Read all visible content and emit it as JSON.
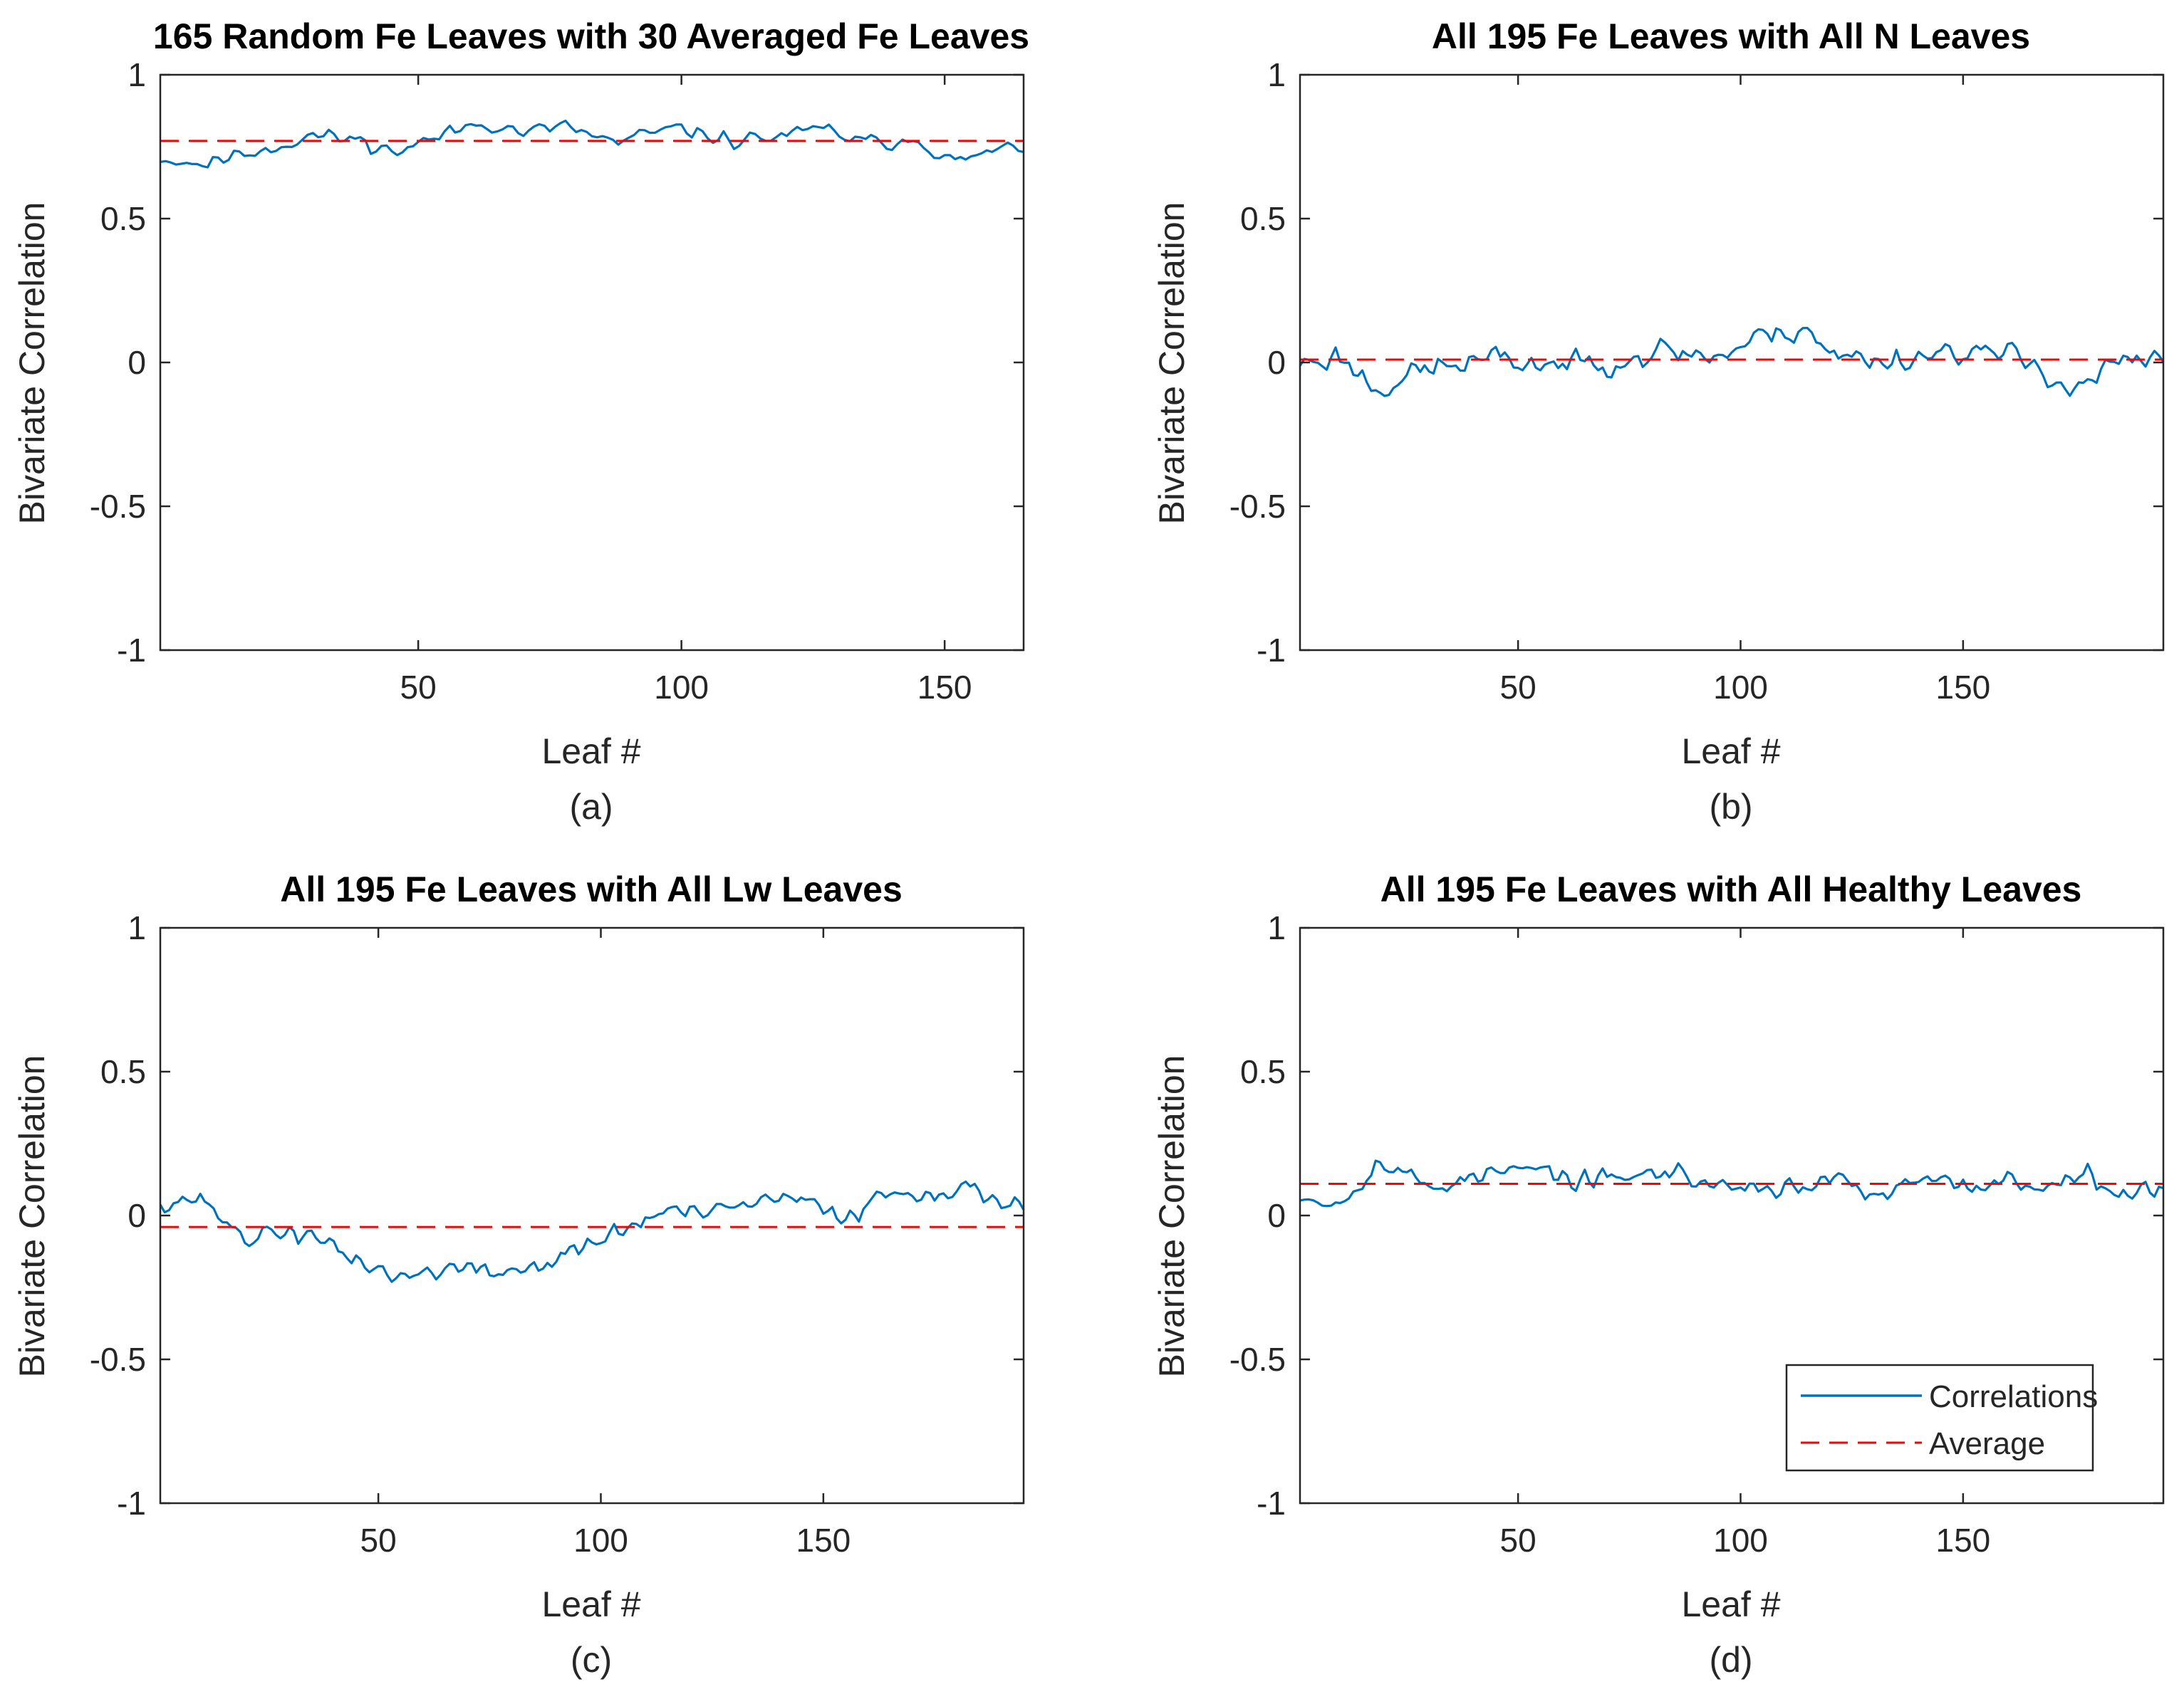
{
  "chart_data": [
    {
      "type": "line",
      "panel": "a",
      "caption": "(a)",
      "title": "165 Random Fe Leaves with 30 Averaged Fe Leaves",
      "xlabel": "Leaf #",
      "ylabel": "Bivariate Correlation",
      "xlim": [
        1,
        165
      ],
      "ylim": [
        -1,
        1
      ],
      "xticks": [
        50,
        100,
        150
      ],
      "yticks": [
        -1,
        -0.5,
        0,
        0.5,
        1
      ],
      "series": [
        {
          "name": "Correlations",
          "color": "#0072BD",
          "style": "solid",
          "n": 165,
          "base": 0.77,
          "amplitude": 0.035,
          "seed": 11,
          "anchors": [
            [
              1,
              0.71
            ],
            [
              5,
              0.7
            ],
            [
              10,
              0.69
            ],
            [
              15,
              0.72
            ],
            [
              25,
              0.76
            ],
            [
              30,
              0.79
            ],
            [
              40,
              0.77
            ],
            [
              45,
              0.73
            ],
            [
              55,
              0.79
            ],
            [
              62,
              0.84
            ],
            [
              70,
              0.8
            ],
            [
              78,
              0.82
            ],
            [
              88,
              0.76
            ],
            [
              95,
              0.8
            ],
            [
              100,
              0.81
            ],
            [
              110,
              0.77
            ],
            [
              120,
              0.79
            ],
            [
              128,
              0.81
            ],
            [
              135,
              0.76
            ],
            [
              145,
              0.78
            ],
            [
              152,
              0.69
            ],
            [
              158,
              0.73
            ],
            [
              165,
              0.75
            ]
          ]
        },
        {
          "name": "Average",
          "color": "#FF0000",
          "style": "dashed",
          "constant": 0.77
        }
      ]
    },
    {
      "type": "line",
      "panel": "b",
      "caption": "(b)",
      "title": "All 195 Fe Leaves with All N Leaves",
      "xlabel": "Leaf #",
      "ylabel": "Bivariate Correlation",
      "xlim": [
        1,
        195
      ],
      "ylim": [
        -1,
        1
      ],
      "xticks": [
        50,
        100,
        150
      ],
      "yticks": [
        -1,
        -0.5,
        0,
        0.5,
        1
      ],
      "series": [
        {
          "name": "Correlations",
          "color": "#0072BD",
          "style": "solid",
          "n": 195,
          "base": 0.0,
          "amplitude": 0.06,
          "seed": 23,
          "anchors": [
            [
              1,
              0.0
            ],
            [
              10,
              0.02
            ],
            [
              18,
              -0.09
            ],
            [
              30,
              -0.02
            ],
            [
              45,
              0.01
            ],
            [
              60,
              -0.01
            ],
            [
              75,
              0.02
            ],
            [
              85,
              0.04
            ],
            [
              95,
              0.02
            ],
            [
              105,
              0.09
            ],
            [
              115,
              0.13
            ],
            [
              120,
              0.02
            ],
            [
              135,
              0.01
            ],
            [
              150,
              0.05
            ],
            [
              165,
              0.0
            ],
            [
              175,
              -0.09
            ],
            [
              185,
              0.0
            ],
            [
              195,
              0.0
            ]
          ]
        },
        {
          "name": "Average",
          "color": "#FF0000",
          "style": "dashed",
          "constant": 0.01
        }
      ]
    },
    {
      "type": "line",
      "panel": "c",
      "caption": "(c)",
      "title": "All 195 Fe Leaves with All Lw Leaves",
      "xlabel": "Leaf #",
      "ylabel": "Bivariate Correlation",
      "xlim": [
        1,
        195
      ],
      "ylim": [
        -1,
        1
      ],
      "xticks": [
        50,
        100,
        150
      ],
      "yticks": [
        -1,
        -0.5,
        0,
        0.5,
        1
      ],
      "series": [
        {
          "name": "Correlations",
          "color": "#0072BD",
          "style": "solid",
          "n": 195,
          "base": -0.04,
          "amplitude": 0.045,
          "seed": 37,
          "anchors": [
            [
              1,
              0.05
            ],
            [
              10,
              0.06
            ],
            [
              20,
              -0.08
            ],
            [
              30,
              -0.05
            ],
            [
              45,
              -0.15
            ],
            [
              55,
              -0.22
            ],
            [
              65,
              -0.18
            ],
            [
              75,
              -0.2
            ],
            [
              85,
              -0.18
            ],
            [
              95,
              -0.12
            ],
            [
              105,
              -0.05
            ],
            [
              115,
              0.02
            ],
            [
              125,
              0.0
            ],
            [
              135,
              0.05
            ],
            [
              145,
              0.05
            ],
            [
              155,
              0.0
            ],
            [
              165,
              0.08
            ],
            [
              175,
              0.09
            ],
            [
              185,
              0.08
            ],
            [
              195,
              0.04
            ]
          ]
        },
        {
          "name": "Average",
          "color": "#FF0000",
          "style": "dashed",
          "constant": -0.04
        }
      ]
    },
    {
      "type": "line",
      "panel": "d",
      "caption": "(d)",
      "title": "All 195 Fe Leaves with All Healthy Leaves",
      "xlabel": "Leaf #",
      "ylabel": "Bivariate Correlation",
      "xlim": [
        1,
        195
      ],
      "ylim": [
        -1,
        1
      ],
      "xticks": [
        50,
        100,
        150
      ],
      "yticks": [
        -1,
        -0.5,
        0,
        0.5,
        1
      ],
      "legend": {
        "location": "bottom-right",
        "entries": [
          "Correlations",
          "Average"
        ]
      },
      "series": [
        {
          "name": "Correlations",
          "color": "#0072BD",
          "style": "solid",
          "n": 195,
          "base": 0.11,
          "amplitude": 0.045,
          "seed": 53,
          "anchors": [
            [
              1,
              0.08
            ],
            [
              10,
              0.04
            ],
            [
              18,
              0.19
            ],
            [
              30,
              0.1
            ],
            [
              45,
              0.15
            ],
            [
              55,
              0.16
            ],
            [
              65,
              0.11
            ],
            [
              75,
              0.14
            ],
            [
              85,
              0.15
            ],
            [
              95,
              0.1
            ],
            [
              110,
              0.1
            ],
            [
              125,
              0.12
            ],
            [
              130,
              0.05
            ],
            [
              140,
              0.12
            ],
            [
              150,
              0.1
            ],
            [
              160,
              0.12
            ],
            [
              170,
              0.1
            ],
            [
              178,
              0.17
            ],
            [
              185,
              0.08
            ],
            [
              195,
              0.08
            ]
          ]
        },
        {
          "name": "Average",
          "color": "#FF0000",
          "style": "dashed",
          "constant": 0.11
        }
      ]
    }
  ]
}
